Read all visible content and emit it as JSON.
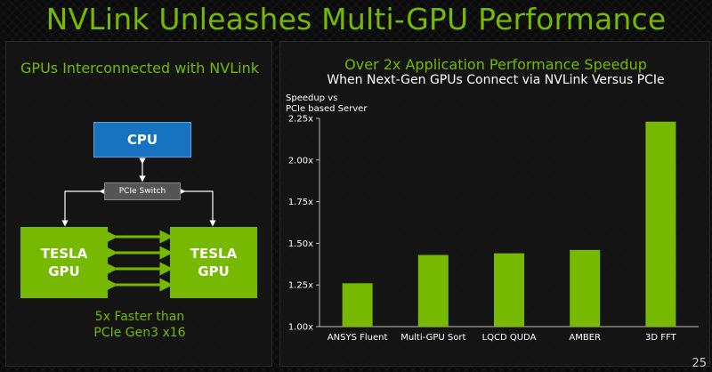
{
  "title": "NVLink Unleashes Multi-GPU Performance",
  "left_panel": {
    "title": "GPUs Interconnected with NVLink",
    "cpu_label": "CPU",
    "switch_label": "PCIe Switch",
    "gpu_left": [
      "TESLA",
      "GPU"
    ],
    "gpu_right": [
      "TESLA",
      "GPU"
    ],
    "footer": [
      "5x Faster than",
      "PCIe Gen3 x16"
    ]
  },
  "page_number": "25",
  "chart_data": {
    "type": "bar",
    "title": "Over 2x Application Performance Speedup",
    "subtitle": "When Next-Gen GPUs Connect via NVLink Versus PCIe",
    "ylabel": [
      "Speedup vs",
      "PCIe based Server"
    ],
    "categories": [
      "ANSYS Fluent",
      "Multi-GPU Sort",
      "LQCD QUDA",
      "AMBER",
      "3D FFT"
    ],
    "values": [
      1.26,
      1.43,
      1.44,
      1.46,
      2.23
    ],
    "ylim": [
      1.0,
      2.25
    ],
    "yticks": [
      1.0,
      1.25,
      1.5,
      1.75,
      2.0,
      2.25
    ],
    "ytick_labels": [
      "1.00x",
      "1.25x",
      "1.50x",
      "1.75x",
      "2.00x",
      "2.25x"
    ],
    "bar_color": "#76b900",
    "grid": false
  }
}
